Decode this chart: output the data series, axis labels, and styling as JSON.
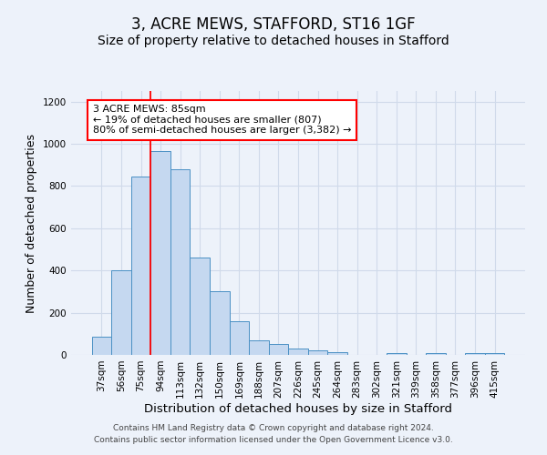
{
  "title": "3, ACRE MEWS, STAFFORD, ST16 1GF",
  "subtitle": "Size of property relative to detached houses in Stafford",
  "xlabel": "Distribution of detached houses by size in Stafford",
  "ylabel": "Number of detached properties",
  "categories": [
    "37sqm",
    "56sqm",
    "75sqm",
    "94sqm",
    "113sqm",
    "132sqm",
    "150sqm",
    "169sqm",
    "188sqm",
    "207sqm",
    "226sqm",
    "245sqm",
    "264sqm",
    "283sqm",
    "302sqm",
    "321sqm",
    "339sqm",
    "358sqm",
    "377sqm",
    "396sqm",
    "415sqm"
  ],
  "values": [
    85,
    400,
    845,
    965,
    880,
    460,
    300,
    160,
    70,
    50,
    30,
    22,
    15,
    0,
    0,
    10,
    0,
    10,
    0,
    10,
    10
  ],
  "bar_color": "#c5d8f0",
  "bar_edge_color": "#4a90c4",
  "red_line_x": 2.5,
  "annotation_line1": "3 ACRE MEWS: 85sqm",
  "annotation_line2": "← 19% of detached houses are smaller (807)",
  "annotation_line3": "80% of semi-detached houses are larger (3,382) →",
  "annotation_box_color": "white",
  "annotation_box_edge": "red",
  "ylim": [
    0,
    1250
  ],
  "yticks": [
    0,
    200,
    400,
    600,
    800,
    1000,
    1200
  ],
  "background_color": "#edf2fa",
  "grid_color": "#d0daea",
  "footer": "Contains HM Land Registry data © Crown copyright and database right 2024.\nContains public sector information licensed under the Open Government Licence v3.0.",
  "title_fontsize": 12,
  "subtitle_fontsize": 10,
  "xlabel_fontsize": 9.5,
  "ylabel_fontsize": 9,
  "tick_fontsize": 7.5,
  "annotation_fontsize": 8,
  "footer_fontsize": 6.5
}
